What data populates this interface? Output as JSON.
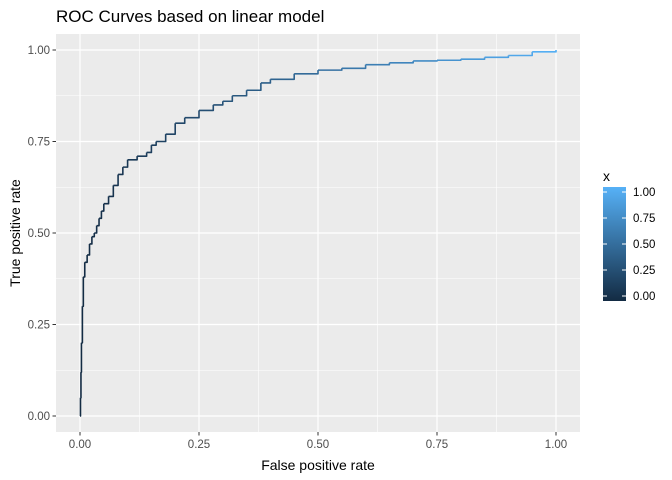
{
  "chart_data": {
    "type": "line",
    "title": "ROC Curves based on linear model",
    "xlabel": "False positive rate",
    "ylabel": "True positive rate",
    "xlim": [
      0,
      1
    ],
    "ylim": [
      0,
      1
    ],
    "x_ticks": [
      "0.00",
      "0.25",
      "0.50",
      "0.75",
      "1.00"
    ],
    "y_ticks": [
      "0.00",
      "0.25",
      "0.50",
      "0.75",
      "1.00"
    ],
    "grid": true,
    "panel_background": "#ebebeb",
    "legend": {
      "title": "x",
      "placement": "right",
      "type": "colorbar",
      "range": [
        0,
        1
      ],
      "ticks": [
        "0.00",
        "0.25",
        "0.50",
        "0.75",
        "1.00"
      ],
      "low_color": "#132b43",
      "high_color": "#56b1f7"
    },
    "series": [
      {
        "color_by": "x",
        "points": [
          [
            0.0,
            0.0
          ],
          [
            0.001,
            0.05
          ],
          [
            0.002,
            0.12
          ],
          [
            0.003,
            0.2
          ],
          [
            0.005,
            0.3
          ],
          [
            0.007,
            0.38
          ],
          [
            0.01,
            0.42
          ],
          [
            0.015,
            0.44
          ],
          [
            0.02,
            0.47
          ],
          [
            0.025,
            0.49
          ],
          [
            0.03,
            0.5
          ],
          [
            0.035,
            0.52
          ],
          [
            0.04,
            0.54
          ],
          [
            0.045,
            0.56
          ],
          [
            0.05,
            0.58
          ],
          [
            0.06,
            0.6
          ],
          [
            0.07,
            0.63
          ],
          [
            0.08,
            0.66
          ],
          [
            0.09,
            0.68
          ],
          [
            0.1,
            0.7
          ],
          [
            0.12,
            0.71
          ],
          [
            0.14,
            0.72
          ],
          [
            0.15,
            0.74
          ],
          [
            0.16,
            0.75
          ],
          [
            0.18,
            0.77
          ],
          [
            0.2,
            0.8
          ],
          [
            0.22,
            0.815
          ],
          [
            0.25,
            0.835
          ],
          [
            0.28,
            0.85
          ],
          [
            0.3,
            0.86
          ],
          [
            0.32,
            0.875
          ],
          [
            0.35,
            0.89
          ],
          [
            0.38,
            0.91
          ],
          [
            0.4,
            0.92
          ],
          [
            0.45,
            0.935
          ],
          [
            0.5,
            0.945
          ],
          [
            0.55,
            0.95
          ],
          [
            0.6,
            0.96
          ],
          [
            0.65,
            0.965
          ],
          [
            0.7,
            0.97
          ],
          [
            0.75,
            0.972
          ],
          [
            0.8,
            0.975
          ],
          [
            0.85,
            0.98
          ],
          [
            0.9,
            0.985
          ],
          [
            0.95,
            0.995
          ],
          [
            1.0,
            1.0
          ]
        ]
      }
    ]
  }
}
